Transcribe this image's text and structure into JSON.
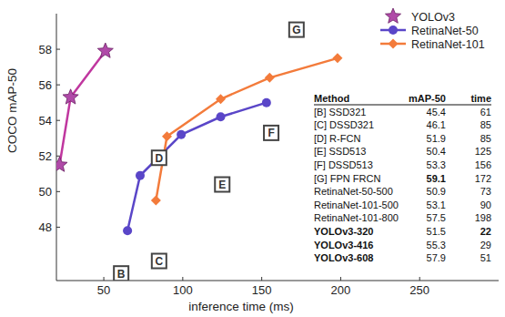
{
  "chart_data": {
    "type": "line",
    "x_label": "inference time (ms)",
    "y_label": "COCO mAP-50",
    "xlim": [
      20,
      300
    ],
    "ylim": [
      45,
      60
    ],
    "xticks": [
      50,
      100,
      150,
      200,
      250
    ],
    "yticks": [
      48,
      50,
      52,
      54,
      56,
      58
    ],
    "grid": false,
    "legend": "upper right",
    "series": [
      {
        "name": "YOLOv3",
        "color": "#c0379f",
        "marker": "star",
        "x": [
          22,
          29,
          51
        ],
        "values": [
          51.5,
          55.3,
          57.9
        ]
      },
      {
        "name": "RetinaNet-50",
        "color": "#5a46c8",
        "marker": "circle",
        "x": [
          65,
          73,
          99,
          124,
          153
        ],
        "values": [
          47.8,
          50.9,
          53.2,
          54.2,
          55.0
        ]
      },
      {
        "name": "RetinaNet-101",
        "color": "#f37b3b",
        "marker": "diamond",
        "x": [
          83,
          90,
          124,
          155,
          198
        ],
        "values": [
          49.5,
          53.1,
          55.2,
          56.4,
          57.5
        ]
      }
    ],
    "annotations": [
      {
        "text": "B",
        "x": 61,
        "y": 45.4
      },
      {
        "text": "C",
        "x": 85,
        "y": 46.1
      },
      {
        "text": "D",
        "x": 85,
        "y": 51.9
      },
      {
        "text": "E",
        "x": 125,
        "y": 50.4
      },
      {
        "text": "F",
        "x": 156,
        "y": 53.3
      },
      {
        "text": "G",
        "x": 172,
        "y": 59.1
      }
    ],
    "table": {
      "header": [
        "Method",
        "mAP-50",
        "time"
      ],
      "rows": [
        [
          "[B] SSD321",
          45.4,
          61
        ],
        [
          "[C] DSSD321",
          46.1,
          85
        ],
        [
          "[D] R-FCN",
          51.9,
          85
        ],
        [
          "[E] SSD513",
          50.4,
          125
        ],
        [
          "[F] DSSD513",
          53.3,
          156
        ],
        [
          "[G] FPN FRCN",
          59.1,
          172
        ],
        [
          "RetinaNet-50-500",
          50.9,
          73
        ],
        [
          "RetinaNet-101-500",
          53.1,
          90
        ],
        [
          "RetinaNet-101-800",
          57.5,
          198
        ],
        [
          "YOLOv3-320",
          51.5,
          22
        ],
        [
          "YOLOv3-416",
          55.3,
          29
        ],
        [
          "YOLOv3-608",
          57.9,
          51
        ]
      ]
    }
  }
}
